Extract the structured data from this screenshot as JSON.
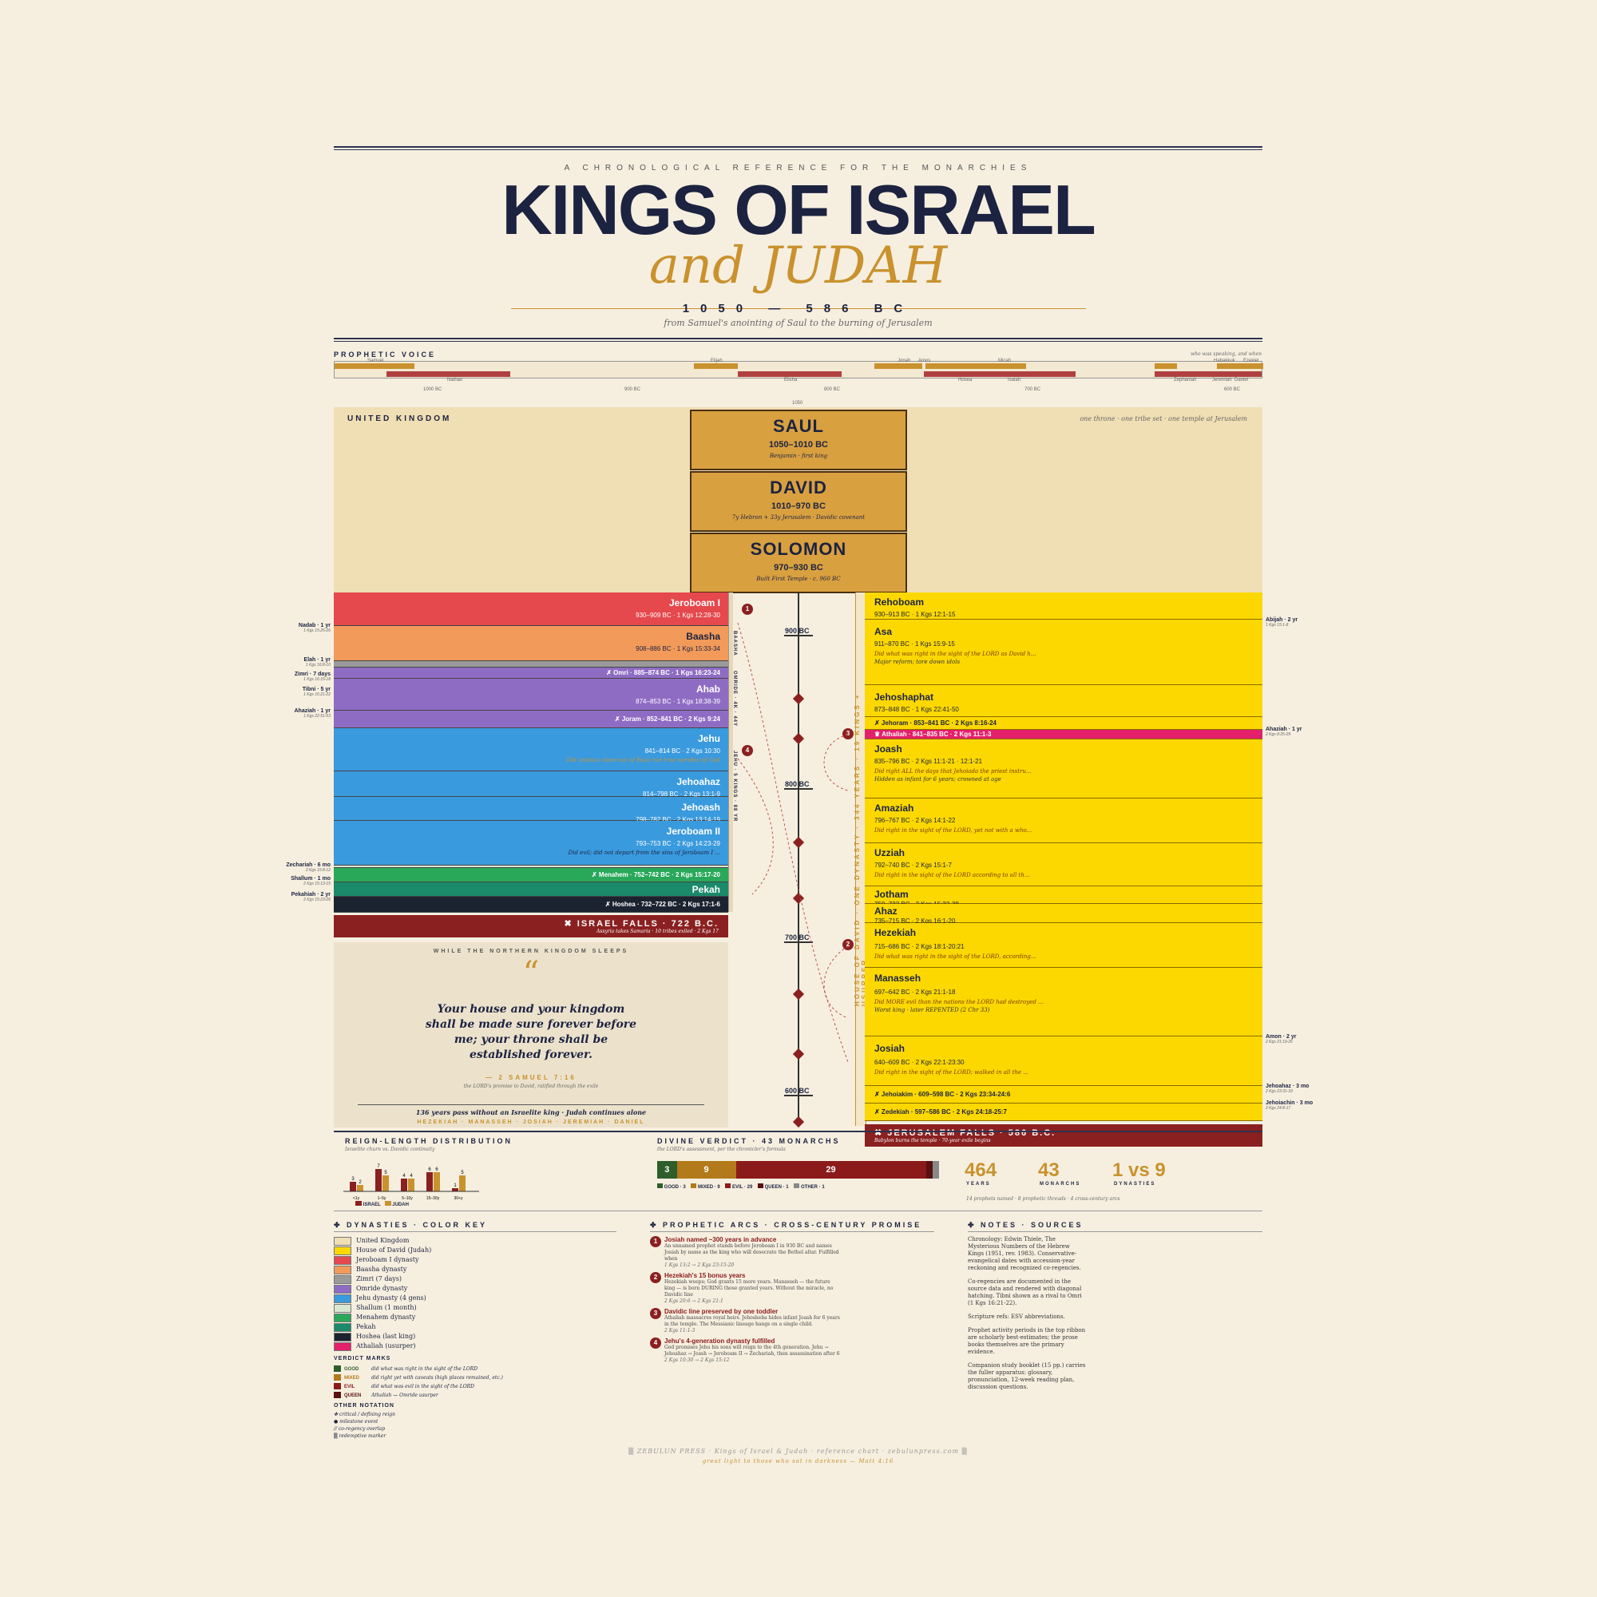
{
  "header": {
    "kicker": "A CHRONOLOGICAL REFERENCE FOR THE MONARCHIES",
    "title": "KINGS OF ISRAEL",
    "subtitle": "and JUDAH",
    "date_range": "1050 — 586 BC",
    "date_line": "from Samuel's anointing of Saul to the burning of Jerusalem"
  },
  "prophetic_voice": {
    "label": "PROPHETIC VOICE",
    "note": "who was speaking, and when",
    "names_top": [
      "Samuel",
      "Elijah",
      "Jonah",
      "Amos",
      "Micah",
      "Habakkuk",
      "Ezekiel"
    ],
    "names_bottom": [
      "Nathan",
      "Elisha",
      "Hosea",
      "Isaiah",
      "Zephaniah",
      "Jeremiah",
      "Daniel"
    ],
    "ticks": [
      "1000 BC",
      "900 BC",
      "800 BC",
      "700 BC",
      "600 BC"
    ]
  },
  "united": {
    "label": "UNITED KINGDOM",
    "note": "one throne · one tribe set · one temple at Jerusalem",
    "kings": [
      {
        "name": "SAUL",
        "years": "1050–1010 BC",
        "note": "Benjamin · first king"
      },
      {
        "name": "DAVID",
        "years": "1010–970 BC",
        "note": "7y Hebron + 33y Jerusalem · Davidic covenant"
      },
      {
        "name": "SOLOMON",
        "years": "970–930 BC",
        "note": "Built First Temple · c. 960 BC"
      }
    ],
    "tick": "1050"
  },
  "israel": {
    "kings": [
      {
        "name": "Jeroboam I",
        "dates": "930–909 BC · 1 Kgs 12:28-30"
      },
      {
        "name": "Baasha",
        "dates": "908–886 BC · 1 Kgs 15:33-34"
      },
      {
        "name": "✗ Omri · 885–874 BC · 1 Kgs 16:23-24"
      },
      {
        "name": "Ahab",
        "dates": "874–853 BC · 1 Kgs 18:38-39"
      },
      {
        "name": "✗ Joram · 852–841 BC · 2 Kgs 9:24"
      },
      {
        "name": "Jehu",
        "dates": "841–814 BC · 2 Kgs 10:30",
        "comment": "Did zealous clean-out of Baal; not true worship of God"
      },
      {
        "name": "Jehoahaz",
        "dates": "814–798 BC · 2 Kgs 13:1-9"
      },
      {
        "name": "Jehoash",
        "dates": "798–782 BC · 2 Kgs 13:14-19"
      },
      {
        "name": "Jeroboam II",
        "dates": "793–753 BC · 2 Kgs 14:23-29",
        "comment": "Did evil; did not depart from the sins of Jeroboam I ..."
      },
      {
        "name": "✗ Menahem · 752–742 BC · 2 Kgs 15:17-20"
      },
      {
        "name": "Pekah"
      },
      {
        "name": "✗ Hoshea · 732–722 BC · 2 Kgs 17:1-6"
      }
    ],
    "falls": "✖ ISRAEL FALLS · 722 B.C.",
    "falls_note": "Assyria takes Samaria · 10 tribes exiled · 2 Kgs 17",
    "side": [
      {
        "name": "Nadab · 1 yr",
        "ref": "1 Kgs 15:25-26"
      },
      {
        "name": "Elah · 1 yr",
        "ref": "1 Kgs 16:8-10"
      },
      {
        "name": "Zimri · 7 days",
        "ref": "1 Kgs 16:15-18"
      },
      {
        "name": "Tibni · 5 yr",
        "ref": "1 Kgs 16:21-22"
      },
      {
        "name": "Ahaziah · 1 yr",
        "ref": "1 Kgs 22:51-53"
      },
      {
        "name": "Zechariah · 6 mo",
        "ref": "2 Kgs 15:8-12"
      },
      {
        "name": "Shallum · 1 mo",
        "ref": "2 Kgs 15:13-15"
      },
      {
        "name": "Pekahiah · 2 yr",
        "ref": "2 Kgs 15:23-26"
      }
    ],
    "vertical_a": "BAASHA",
    "vertical_b": "OMRIDE · 4K · 44Y",
    "vertical_c": "JEHU · 5 KINGS · 88 YR"
  },
  "quote": {
    "kicker": "WHILE THE NORTHERN KINGDOM SLEEPS",
    "text": "Your house and your kingdom shall be made sure forever before me; your throne shall be established forever.",
    "ref": "— 2 SAMUEL 7:16",
    "sub": "the LORD's promise to David, ratified through the exile",
    "gap": "136 years pass without an Israelite king · Judah continues alone",
    "names": "HEZEKIAH · MANASSEH · JOSIAH · JEREMIAH · DANIEL"
  },
  "timeline": {
    "labels": [
      "900 BC",
      "800 BC",
      "700 BC",
      "600 BC"
    ]
  },
  "judah": {
    "vertical": "HOUSE OF DAVID · ONE DYNASTY · 344 YEARS · 19 KINGS + USURPER",
    "kings": [
      {
        "name": "Rehoboam",
        "dates": "930–913 BC · 1 Kgs 12:1-15"
      },
      {
        "name": "Asa",
        "dates": "911–870 BC · 1 Kgs 15:9-15",
        "comment": "Did what was right in the sight of the LORD as David h...",
        "comment2": "Major reform; tore down idols"
      },
      {
        "name": "Jehoshaphat",
        "dates": "873–848 BC · 1 Kgs 22:41-50"
      },
      {
        "name": "✗ Jehoram · 853–841 BC · 2 Kgs 8:16-24"
      },
      {
        "name": "♛ Athaliah · 841–835 BC · 2 Kgs 11:1-3"
      },
      {
        "name": "Joash",
        "dates": "835–796 BC · 2 Kgs 11:1-21 · 12:1-21",
        "comment": "Did right ALL the days that Jehoiada the priest instru...",
        "comment2": "Hidden as infant for 6 years; crowned at age"
      },
      {
        "name": "Amaziah",
        "dates": "796–767 BC · 2 Kgs 14:1-22",
        "comment": "Did right in the sight of the LORD, yet not with a who..."
      },
      {
        "name": "Uzziah",
        "dates": "792–740 BC · 2 Kgs 15:1-7",
        "comment": "Did right in the sight of the LORD according to all th..."
      },
      {
        "name": "Jotham",
        "dates": "750–732 BC · 2 Kgs 15:32-38"
      },
      {
        "name": "Ahaz",
        "dates": "735–715 BC · 2 Kgs 16:1-20"
      },
      {
        "name": "Hezekiah",
        "dates": "715–686 BC · 2 Kgs 18:1-20:21",
        "comment": "Did what was right in the sight of the LORD, according..."
      },
      {
        "name": "Manasseh",
        "dates": "697–642 BC · 2 Kgs 21:1-18",
        "comment": "Did MORE evil than the nations the LORD had destroyed ...",
        "comment2": "Worst king · later REPENTED (2 Chr 33)"
      },
      {
        "name": "Josiah",
        "dates": "640–609 BC · 2 Kgs 22:1-23:30",
        "comment": "Did right in the sight of the LORD; walked in all the ..."
      },
      {
        "name": "✗ Jehoiakim · 609–598 BC · 2 Kgs 23:34-24:6"
      },
      {
        "name": "✗ Zedekiah · 597–586 BC · 2 Kgs 24:18-25:7"
      }
    ],
    "side": [
      {
        "name": "Abijah · 2 yr",
        "ref": "1 Kgs 15:1-8"
      },
      {
        "name": "Ahaziah · 1 yr",
        "ref": "2 Kgs 8:25-29"
      },
      {
        "name": "Amon · 2 yr",
        "ref": "2 Kgs 21:19-26"
      },
      {
        "name": "Jehoahaz · 3 mo",
        "ref": "2 Kgs 23:31-33"
      },
      {
        "name": "Jehoiachin · 3 mo",
        "ref": "2 Kgs 24:8-17"
      }
    ],
    "falls": "✖ JERUSALEM FALLS · 586 B.C.",
    "falls_note": "Babylon burns the temple · 70-year exile begins"
  },
  "reign_dist": {
    "label": "REIGN-LENGTH DISTRIBUTION",
    "sub": "Israelite churn vs. Davidic continuity",
    "bins": [
      "<1y",
      "1–5y",
      "5–10y",
      "15–30y",
      "30+y"
    ],
    "israel": [
      3,
      7,
      4,
      6,
      1
    ],
    "judah": [
      2,
      5,
      4,
      6,
      5
    ],
    "legend_israel": "ISRAEL",
    "legend_judah": "JUDAH"
  },
  "verdict": {
    "label": "DIVINE VERDICT · 43 MONARCHS",
    "sub": "the LORD's assessment, per the chronicler's formula",
    "segments": [
      {
        "label": "GOOD",
        "value": 3,
        "color": "#2e5e2a"
      },
      {
        "label": "MIXED",
        "value": 9,
        "color": "#b27a1a"
      },
      {
        "label": "EVIL",
        "value": 29,
        "color": "#8b1a1a"
      },
      {
        "label": "QUEEN",
        "value": 1,
        "color": "#5a1010"
      },
      {
        "label": "OTHER",
        "value": 1,
        "color": "#888888"
      }
    ],
    "legend": [
      "GOOD · 3",
      "MIXED · 9",
      "EVIL · 29",
      "QUEEN · 1",
      "OTHER · 1"
    ]
  },
  "stats": {
    "years": "464",
    "years_label": "YEARS",
    "monarchs": "43",
    "monarchs_label": "MONARCHS",
    "dynasties": "1 vs 9",
    "dynasties_label": "DYNASTIES",
    "note": "14 prophets named · 8 prophetic threads · 4 cross-century arcs"
  },
  "key": {
    "label": "DYNASTIES · COLOR KEY",
    "items": [
      {
        "label": "United Kingdom",
        "color": "#f0deb4"
      },
      {
        "label": "House of David (Judah)",
        "color": "#fcd800"
      },
      {
        "label": "Jeroboam I dynasty",
        "color": "#e5484d"
      },
      {
        "label": "Baasha dynasty",
        "color": "#f29a5a"
      },
      {
        "label": "Zimri (7 days)",
        "color": "#9a9a9a"
      },
      {
        "label": "Omride dynasty",
        "color": "#8f6cc4"
      },
      {
        "label": "Jehu dynasty (4 gens)",
        "color": "#3a9ade"
      },
      {
        "label": "Shallum (1 month)",
        "color": "#d9e8d0"
      },
      {
        "label": "Menahem dynasty",
        "color": "#29a85a"
      },
      {
        "label": "Pekah",
        "color": "#1a8a6a"
      },
      {
        "label": "Hoshea (last king)",
        "color": "#1c2330"
      },
      {
        "label": "Athaliah (usurper)",
        "color": "#e5206a"
      }
    ],
    "verdict_label": "VERDICT MARKS",
    "verdicts": [
      {
        "tag": "GOOD",
        "desc": "did what was right in the sight of the LORD"
      },
      {
        "tag": "MIXED",
        "desc": "did right yet with caveats (high places remained, etc.)"
      },
      {
        "tag": "EVIL",
        "desc": "did what was evil in the sight of the LORD"
      },
      {
        "tag": "QUEEN",
        "desc": "Athaliah — Omride usurper"
      }
    ],
    "other_label": "OTHER NOTATION",
    "other": [
      "✤ critical / defining reign",
      "● milestone event",
      "// co-regency overlap",
      "▒ redemptive marker"
    ]
  },
  "arcs": {
    "label": "PROPHETIC ARCS · CROSS-CENTURY PROMISE",
    "items": [
      {
        "n": "1",
        "title": "Josiah named ~300 years in advance",
        "body": "An unnamed prophet stands before Jeroboam I in 930 BC and names Josiah by name as the king who will desecrate the Bethel altar. Fulfilled when",
        "ref": "1 Kgs 13:2 → 2 Kgs 23:15-20"
      },
      {
        "n": "2",
        "title": "Hezekiah's 15 bonus years",
        "body": "Hezekiah weeps; God grants 15 more years. Manasseh — the future king — is born DURING those granted years. Without the miracle, no Davidic line",
        "ref": "2 Kgs 20:6 → 2 Kgs 21:1"
      },
      {
        "n": "3",
        "title": "Davidic line preserved by one toddler",
        "body": "Athaliah massacres royal heirs. Jehosheba hides infant Joash for 6 years in the temple. The Messianic lineage hangs on a single child.",
        "ref": "2 Kgs 11:1-3"
      },
      {
        "n": "4",
        "title": "Jehu's 4-generation dynasty fulfilled",
        "body": "God promises Jehu his sons will reign to the 4th generation. Jehu → Jehoahaz → Joash → Jeroboam II → Zechariah, then assassination after 6",
        "ref": "2 Kgs 10:30 → 2 Kgs 15:12"
      }
    ]
  },
  "notes": {
    "label": "NOTES · SOURCES",
    "paras": [
      "Chronology: Edwin Thiele, The Mysterious Numbers of the Hebrew Kings (1951, rev. 1983). Conservative-evangelical dates with accession-year reckoning and recognized co-regencies.",
      "Co-regencies are documented in the source data and rendered with diagonal hatching. Tibni shown as a rival to Omri (1 Kgs 16:21-22).",
      "Scripture refs: ESV abbreviations.",
      "Prophet activity periods in the top ribbon are scholarly best-estimates; the prose books themselves are the primary evidence.",
      "Companion study booklet (15 pp.) carries the fuller apparatus: glossary, pronunciation, 12-week reading plan, discussion questions."
    ]
  },
  "footer": {
    "line1": "▒ ZEBULUN PRESS · Kings of Israel & Judah · reference chart · zebulunpress.com ▒",
    "line2": "great light to those who sat in darkness — Matt 4:16"
  },
  "colors": {
    "navy": "#1c2340",
    "gold": "#c9922e",
    "judah": "#fcd800"
  }
}
